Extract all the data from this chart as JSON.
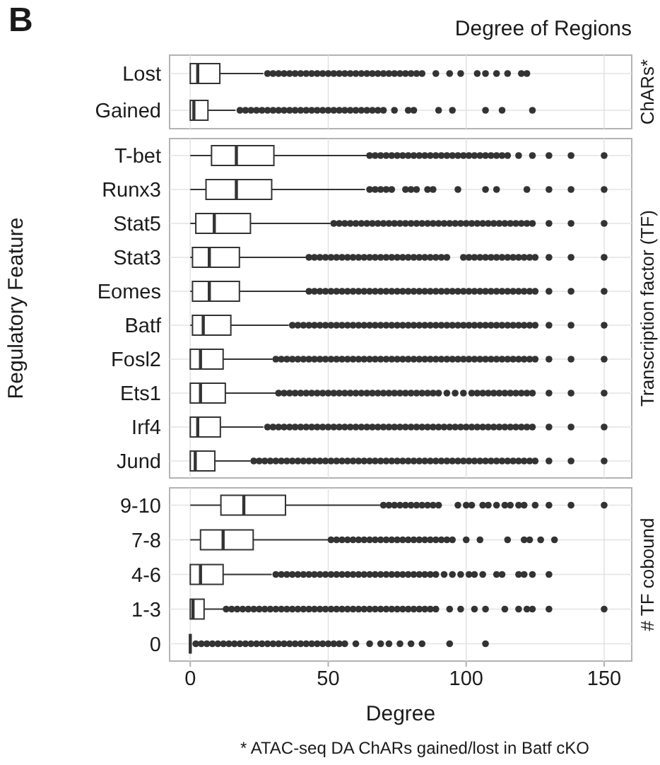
{
  "chart_data": [
    {
      "type": "box",
      "orientation": "horizontal",
      "title": "Degree of Regions",
      "annotations": [
        "B"
      ],
      "y2label": "ChARs*",
      "categories": [
        "Lost",
        "Gained"
      ],
      "marker": "circle",
      "grid": true,
      "tick_labels": "y",
      "xlim": [
        -7.5,
        160
      ],
      "xticks": [
        0,
        50,
        100,
        150
      ],
      "boxes": [
        {
          "low": 0,
          "q1": 0,
          "median": 2.7,
          "q3": 10.7,
          "high": 26.5,
          "outliers": [
            28,
            30,
            32,
            34,
            36,
            38,
            40,
            42,
            44,
            46,
            48,
            50,
            52,
            54,
            56,
            58,
            60,
            62,
            64,
            66,
            68,
            70,
            72,
            74,
            76,
            78,
            80,
            82,
            84,
            89,
            94,
            98,
            104,
            107,
            111,
            115,
            120,
            122
          ]
        },
        {
          "low": 0,
          "q1": 0,
          "median": 1.3,
          "q3": 6.4,
          "high": 16.4,
          "outliers": [
            18,
            20,
            22,
            24,
            26,
            28,
            30,
            32,
            34,
            36,
            38,
            40,
            42,
            44,
            46,
            48,
            50,
            52,
            54,
            56,
            58,
            60,
            62,
            64,
            66,
            68,
            70,
            74,
            79,
            81,
            90,
            95,
            107,
            113,
            124
          ]
        }
      ]
    },
    {
      "type": "box",
      "orientation": "horizontal",
      "ylabel": "Regulatory Feature",
      "y2label": "Transcription factor (TF)",
      "categories": [
        "T-bet",
        "Runx3",
        "Stat5",
        "Stat3",
        "Eomes",
        "Batf",
        "Fosl2",
        "Ets1",
        "Irf4",
        "Jund"
      ],
      "marker": "circle",
      "grid": true,
      "tick_labels": "y",
      "xlim": [
        -7.5,
        160
      ],
      "xticks": [
        0,
        50,
        100,
        150
      ],
      "boxes": [
        {
          "low": 0,
          "q1": 7.7,
          "median": 16.7,
          "q3": 30.3,
          "high": 64.2,
          "outliers": [
            65,
            67,
            69,
            71,
            73,
            75,
            77,
            79,
            81,
            83,
            85,
            87,
            89,
            91,
            93,
            95,
            97,
            99,
            101,
            103,
            105,
            107,
            109,
            111,
            113,
            115,
            119,
            124,
            130,
            138,
            150
          ]
        },
        {
          "low": 0,
          "q1": 5.7,
          "median": 16.7,
          "q3": 29.5,
          "high": 63.3,
          "outliers": [
            65,
            67,
            69,
            71,
            73,
            78,
            80,
            82,
            86,
            88,
            97,
            107,
            111,
            122,
            130,
            138,
            150
          ]
        },
        {
          "low": 0,
          "q1": 2,
          "median": 8.7,
          "q3": 21.8,
          "high": 50.8,
          "outliers": [
            52,
            54,
            56,
            58,
            60,
            62,
            64,
            66,
            68,
            70,
            72,
            74,
            76,
            78,
            80,
            82,
            84,
            86,
            88,
            90,
            92,
            94,
            96,
            98,
            100,
            102,
            104,
            106,
            108,
            110,
            112,
            114,
            116,
            118,
            120,
            122,
            124,
            130,
            138,
            150
          ]
        },
        {
          "low": 0,
          "q1": 0.8,
          "median": 6.9,
          "q3": 17.8,
          "high": 42.4,
          "outliers": [
            43,
            45,
            47,
            49,
            51,
            53,
            55,
            57,
            59,
            61,
            63,
            65,
            67,
            69,
            71,
            73,
            75,
            77,
            79,
            81,
            83,
            85,
            87,
            89,
            91,
            93,
            99,
            101,
            103,
            105,
            107,
            109,
            111,
            113,
            115,
            117,
            119,
            121,
            123,
            125,
            130,
            138,
            150
          ]
        },
        {
          "low": 0,
          "q1": 0.8,
          "median": 6.9,
          "q3": 17.8,
          "high": 42.4,
          "outliers": [
            43,
            45,
            47,
            49,
            51,
            53,
            55,
            57,
            59,
            61,
            63,
            65,
            67,
            69,
            71,
            73,
            75,
            77,
            79,
            81,
            83,
            85,
            87,
            89,
            91,
            93,
            95,
            97,
            99,
            101,
            103,
            105,
            107,
            109,
            111,
            113,
            115,
            117,
            119,
            121,
            123,
            125,
            130,
            138,
            150
          ]
        },
        {
          "low": 0,
          "q1": 0.8,
          "median": 4.7,
          "q3": 14.7,
          "high": 35.7,
          "outliers": [
            37,
            39,
            41,
            43,
            45,
            47,
            49,
            51,
            53,
            55,
            57,
            59,
            61,
            63,
            65,
            67,
            69,
            71,
            73,
            75,
            77,
            79,
            81,
            83,
            85,
            87,
            89,
            91,
            93,
            95,
            97,
            99,
            101,
            103,
            105,
            107,
            109,
            111,
            113,
            115,
            117,
            119,
            121,
            123,
            125,
            130,
            138,
            150
          ]
        },
        {
          "low": 0,
          "q1": 0,
          "median": 3.7,
          "q3": 11.9,
          "high": 29.8,
          "outliers": [
            31,
            33,
            35,
            37,
            39,
            41,
            43,
            45,
            47,
            49,
            51,
            53,
            55,
            57,
            59,
            61,
            63,
            65,
            67,
            69,
            71,
            73,
            75,
            77,
            79,
            81,
            83,
            85,
            87,
            89,
            91,
            93,
            95,
            97,
            99,
            101,
            103,
            105,
            107,
            109,
            111,
            113,
            115,
            117,
            119,
            121,
            123,
            125,
            130,
            138,
            150
          ]
        },
        {
          "low": 0,
          "q1": 0,
          "median": 3.7,
          "q3": 12.7,
          "high": 31.5,
          "outliers": [
            32,
            34,
            36,
            38,
            40,
            42,
            44,
            46,
            48,
            50,
            52,
            54,
            56,
            58,
            60,
            62,
            64,
            66,
            68,
            70,
            72,
            74,
            76,
            78,
            80,
            82,
            84,
            86,
            88,
            90,
            93,
            96,
            99,
            102,
            104,
            106,
            108,
            110,
            112,
            114,
            116,
            118,
            120,
            122,
            124,
            130,
            138,
            150
          ]
        },
        {
          "low": 0,
          "q1": 0,
          "median": 2.7,
          "q3": 10.9,
          "high": 26.5,
          "outliers": [
            28,
            30,
            32,
            34,
            36,
            38,
            40,
            42,
            44,
            46,
            48,
            50,
            52,
            54,
            56,
            58,
            60,
            62,
            64,
            66,
            68,
            70,
            72,
            74,
            76,
            78,
            80,
            82,
            84,
            86,
            88,
            90,
            92,
            94,
            96,
            98,
            100,
            102,
            104,
            106,
            108,
            110,
            112,
            114,
            116,
            118,
            120,
            122,
            124,
            130,
            138,
            150
          ]
        },
        {
          "low": 0,
          "q1": 0,
          "median": 1.8,
          "q3": 8.9,
          "high": 21.8,
          "outliers": [
            23,
            25,
            27,
            29,
            31,
            33,
            35,
            37,
            39,
            41,
            43,
            45,
            47,
            49,
            51,
            53,
            55,
            57,
            59,
            61,
            63,
            65,
            67,
            69,
            71,
            73,
            75,
            77,
            79,
            81,
            83,
            85,
            87,
            89,
            91,
            93,
            95,
            97,
            99,
            101,
            103,
            105,
            107,
            109,
            111,
            113,
            115,
            117,
            119,
            121,
            123,
            125,
            130,
            138,
            150
          ]
        }
      ]
    },
    {
      "type": "box",
      "orientation": "horizontal",
      "xlabel": "Degree",
      "y2label": "# TF cobound",
      "annotations": [
        "* ATAC-seq DA ChARs gained/lost in Batf cKO"
      ],
      "categories": [
        "9-10",
        "7-8",
        "4-6",
        "1-3",
        "0"
      ],
      "marker": "circle",
      "grid": true,
      "xlim": [
        -7.5,
        160
      ],
      "xticks": [
        0,
        50,
        100,
        150
      ],
      "boxes": [
        {
          "low": 0,
          "q1": 11.1,
          "median": 19.4,
          "q3": 34.5,
          "high": 68.8,
          "outliers": [
            70,
            72,
            74,
            76,
            78,
            80,
            82,
            84,
            86,
            88,
            90,
            97,
            100,
            102,
            106,
            108,
            111,
            114,
            116,
            119,
            121,
            125,
            130,
            138,
            150
          ]
        },
        {
          "low": 0,
          "q1": 3.7,
          "median": 11.9,
          "q3": 22.8,
          "high": 49.9,
          "outliers": [
            51,
            53,
            55,
            57,
            59,
            61,
            63,
            65,
            67,
            69,
            71,
            73,
            75,
            77,
            79,
            81,
            83,
            85,
            87,
            89,
            91,
            93,
            95,
            100,
            105,
            115,
            121,
            123,
            127,
            132
          ]
        },
        {
          "low": 0,
          "q1": 0,
          "median": 3.7,
          "q3": 11.9,
          "high": 29.5,
          "outliers": [
            31,
            33,
            35,
            37,
            39,
            41,
            43,
            45,
            47,
            49,
            51,
            53,
            55,
            57,
            59,
            61,
            63,
            65,
            67,
            69,
            71,
            73,
            75,
            77,
            79,
            81,
            83,
            85,
            87,
            89,
            92,
            95,
            98,
            101,
            103,
            106,
            111,
            113,
            119,
            121,
            124,
            130
          ]
        },
        {
          "low": 0,
          "q1": 0,
          "median": 1,
          "q3": 5,
          "high": 12.2,
          "outliers": [
            13,
            15,
            17,
            19,
            21,
            23,
            25,
            27,
            29,
            31,
            33,
            35,
            37,
            39,
            41,
            43,
            45,
            47,
            49,
            51,
            53,
            55,
            57,
            59,
            61,
            63,
            65,
            67,
            69,
            71,
            73,
            75,
            77,
            79,
            81,
            83,
            85,
            87,
            89,
            94,
            98,
            103,
            107,
            114,
            119,
            122,
            124,
            130,
            150
          ]
        },
        {
          "low": 0,
          "q1": 0,
          "median": 0,
          "q3": 0,
          "high": 0,
          "outliers": [
            2,
            4,
            6,
            8,
            10,
            12,
            14,
            16,
            18,
            20,
            22,
            24,
            26,
            28,
            30,
            32,
            34,
            36,
            38,
            40,
            42,
            44,
            46,
            48,
            50,
            52,
            54,
            56,
            60,
            65,
            69,
            72,
            76,
            80,
            84,
            94,
            107
          ]
        }
      ]
    }
  ]
}
